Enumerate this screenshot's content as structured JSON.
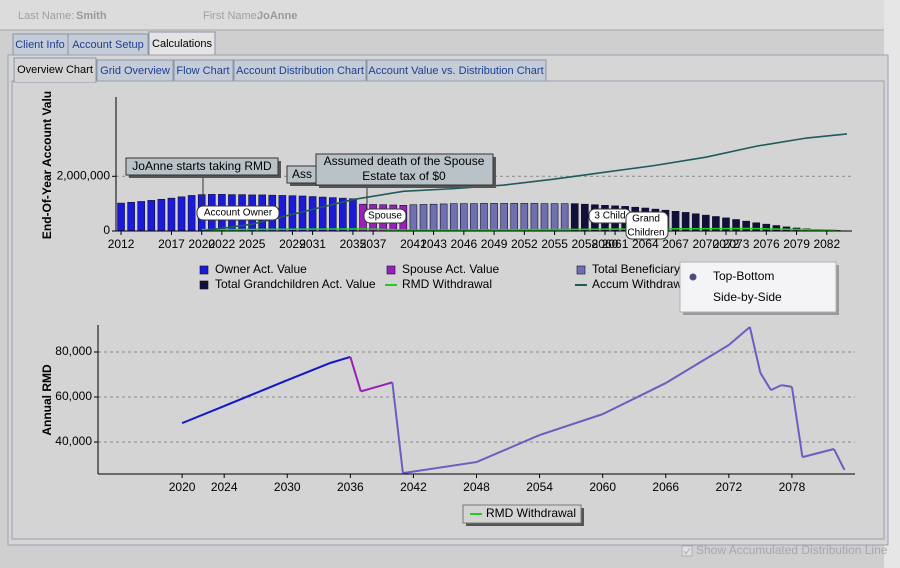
{
  "header": {
    "last_name_label": "Last Name:",
    "last_name": "Smith",
    "first_name_label": "First Name:",
    "first_name": "JoAnne"
  },
  "tabs": [
    "Client Info",
    "Account Setup",
    "Calculations"
  ],
  "subtabs": [
    "Overview Chart",
    "Grid Overview",
    "Flow Chart",
    "Account Distribution Chart",
    "Account Value vs. Distribution Chart"
  ],
  "chart_data": [
    {
      "type": "bar",
      "ylabel": "End-Of-Year Account Valu",
      "xlim": [
        2011.5,
        2084.5
      ],
      "xticks": [
        2012,
        2017,
        2020,
        2022,
        2025,
        2029,
        2031,
        2035,
        2037,
        2041,
        2043,
        2046,
        2049,
        2052,
        2055,
        2058,
        2060,
        2061,
        2064,
        2067,
        2070,
        2072,
        2073,
        2076,
        2079,
        2082
      ],
      "ylim": [
        0,
        4900000
      ],
      "yticks": [
        0,
        {
          "value": 2000000,
          "label": "2,000,000"
        }
      ],
      "grid": true,
      "series": [
        {
          "name": "Owner Act. Value",
          "color": "#1a1ad8",
          "kind": "bar",
          "x": [
            2012,
            2013,
            2014,
            2015,
            2016,
            2017,
            2018,
            2019,
            2020,
            2021,
            2022,
            2023,
            2024,
            2025,
            2026,
            2027,
            2028,
            2029,
            2030,
            2031,
            2032,
            2033,
            2034,
            2035
          ],
          "values": [
            1020000,
            1050000,
            1080000,
            1120000,
            1160000,
            1200000,
            1250000,
            1300000,
            1330000,
            1340000,
            1340000,
            1330000,
            1330000,
            1320000,
            1320000,
            1310000,
            1300000,
            1290000,
            1280000,
            1260000,
            1240000,
            1220000,
            1200000,
            1180000
          ]
        },
        {
          "name": "Spouse Act. Value",
          "color": "#9b1fb8",
          "kind": "bar",
          "x": [
            2036,
            2037,
            2038,
            2039,
            2040
          ],
          "values": [
            980000,
            970000,
            960000,
            950000,
            940000
          ]
        },
        {
          "name": "Total Beneficiary Act. Value",
          "color": "#7070b0",
          "kind": "bar",
          "x": [
            2041,
            2042,
            2043,
            2044,
            2045,
            2046,
            2047,
            2048,
            2049,
            2050,
            2051,
            2052,
            2053,
            2054,
            2055,
            2056
          ],
          "values": [
            960000,
            970000,
            980000,
            990000,
            1000000,
            1000000,
            1000000,
            1010000,
            1010000,
            1010000,
            1010000,
            1010000,
            1010000,
            1000000,
            1000000,
            1000000
          ]
        },
        {
          "name": "Total Grandchildren Act. Value",
          "color": "#10103a",
          "kind": "bar",
          "x": [
            2057,
            2058,
            2059,
            2060,
            2061,
            2062,
            2063,
            2064,
            2065,
            2066,
            2067,
            2068,
            2069,
            2070,
            2071,
            2072,
            2073,
            2074,
            2075,
            2076,
            2077,
            2078,
            2079,
            2080,
            2081,
            2082,
            2083
          ],
          "values": [
            1000000,
            980000,
            960000,
            940000,
            920000,
            900000,
            870000,
            840000,
            800000,
            760000,
            720000,
            680000,
            630000,
            580000,
            530000,
            480000,
            420000,
            360000,
            300000,
            250000,
            200000,
            150000,
            110000,
            80000,
            50000,
            30000,
            20000
          ]
        },
        {
          "name": "RMD Withdrawal",
          "color": "#22cc22",
          "kind": "line",
          "x": [
            2020,
            2036,
            2041,
            2074,
            2083
          ],
          "values": [
            48400,
            77800,
            26200,
            91100,
            27600
          ]
        },
        {
          "name": "Accum Withdrawal",
          "color": "#1e5c5a",
          "kind": "line",
          "x": [
            2020,
            2025,
            2030,
            2035,
            2040,
            2045,
            2050,
            2055,
            2060,
            2065,
            2070,
            2075,
            2080,
            2084
          ],
          "values": [
            0,
            250000,
            700000,
            1150000,
            1450000,
            1550000,
            1680000,
            1900000,
            2150000,
            2400000,
            2700000,
            3100000,
            3400000,
            3550000
          ]
        }
      ],
      "annotations": [
        "JoAnne starts taking RMD",
        "Ass",
        "Assumed death of the Spouse",
        "Estate tax of $0",
        "Account Owner",
        "Spouse",
        "3 Child",
        "Grand",
        "Children"
      ]
    },
    {
      "type": "line",
      "ylabel": "Annual RMD",
      "xlim": [
        2012,
        2084
      ],
      "xticks": [
        2020,
        2024,
        2030,
        2036,
        2042,
        2048,
        2054,
        2060,
        2066,
        2072,
        2078
      ],
      "ylim": [
        25800,
        92000
      ],
      "yticks": [
        {
          "value": 40000,
          "label": "40,000"
        },
        {
          "value": 60000,
          "label": "60,000"
        },
        {
          "value": 80000,
          "label": "80,000"
        }
      ],
      "grid": true,
      "series": [
        {
          "name": "RMD Withdrawal",
          "color": "#22cc22",
          "x": [
            2020,
            2024,
            2030,
            2034,
            2036,
            2037,
            2040,
            2041,
            2048,
            2054,
            2060,
            2066,
            2072,
            2074,
            2075,
            2076,
            2077,
            2078,
            2079,
            2082,
            2083
          ],
          "values": [
            48400,
            56000,
            67500,
            75000,
            77800,
            62500,
            66500,
            26200,
            31100,
            43100,
            52400,
            66200,
            83100,
            91100,
            70700,
            63100,
            65300,
            64500,
            33300,
            36900,
            27600
          ],
          "colors": [
            "#1515c8",
            "#1515c8",
            "#1515c8",
            "#1515c8",
            "#1515c8",
            "#9b1fb8",
            "#9b1fb8",
            "#6a5fc0",
            "#6a5fc0",
            "#6a5fc0",
            "#6a5fc0",
            "#6a5fc0",
            "#6a5fc0",
            "#6a5fc0",
            "#6a5fc0",
            "#6a5fc0",
            "#6a5fc0",
            "#6a5fc0",
            "#6a5fc0",
            "#6a5fc0",
            "#6a5fc0"
          ]
        }
      ]
    }
  ],
  "menu": [
    "Top-Bottom",
    "Side-by-Side"
  ],
  "checkbox": "Show Accumulated Distribution Line"
}
